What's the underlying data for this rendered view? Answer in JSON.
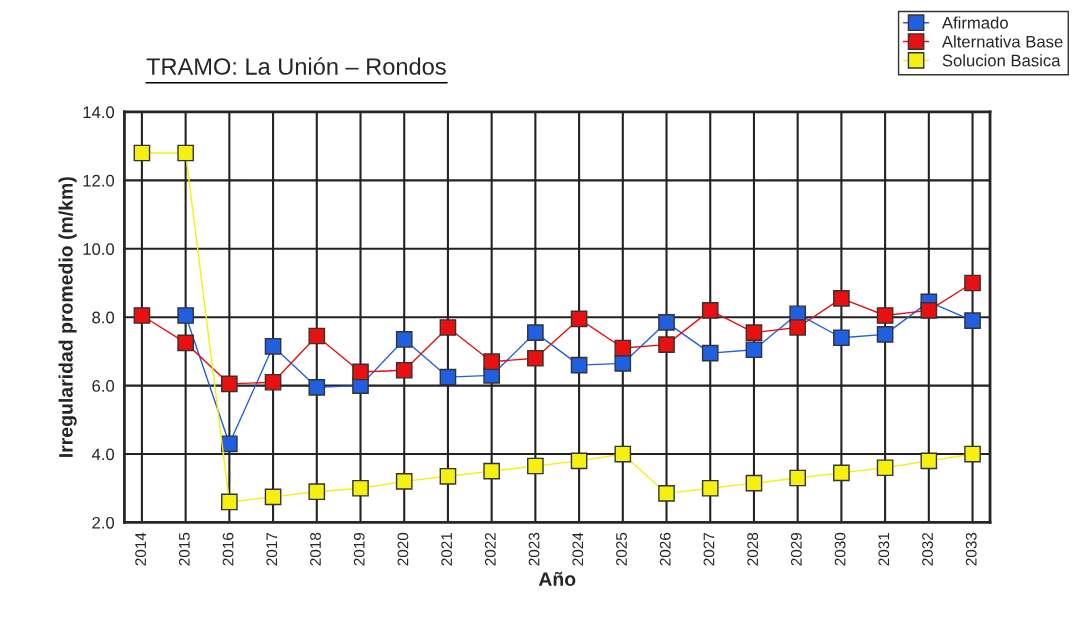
{
  "chart_data": {
    "type": "line",
    "title": "TRAMO: La Unión – Rondos",
    "xlabel": "Año",
    "ylabel": "Irregularidad promedio (m/km)",
    "categories": [
      "2014",
      "2015",
      "2016",
      "2017",
      "2018",
      "2019",
      "2020",
      "2021",
      "2022",
      "2023",
      "2024",
      "2025",
      "2026",
      "2027",
      "2028",
      "2029",
      "2030",
      "2031",
      "2032",
      "2033"
    ],
    "series": [
      {
        "name": "Afirmado",
        "color": "#1f5fe0",
        "values": [
          null,
          8.05,
          4.3,
          7.15,
          5.95,
          6.0,
          7.35,
          6.25,
          6.3,
          7.55,
          6.6,
          6.65,
          7.85,
          6.95,
          7.05,
          8.1,
          7.4,
          7.5,
          8.45,
          7.9
        ]
      },
      {
        "name": "Alternativa Base",
        "color": "#e81010",
        "values": [
          8.05,
          7.25,
          6.05,
          6.1,
          7.45,
          6.4,
          6.45,
          7.7,
          6.7,
          6.8,
          7.95,
          7.1,
          7.2,
          8.2,
          7.55,
          7.7,
          8.55,
          8.05,
          8.2,
          9.0
        ]
      },
      {
        "name": "Solucion Basica",
        "color": "#f5f010",
        "values": [
          12.8,
          12.8,
          2.6,
          2.75,
          2.9,
          3.0,
          3.2,
          3.35,
          3.5,
          3.65,
          3.8,
          4.0,
          2.85,
          3.0,
          3.15,
          3.3,
          3.45,
          3.6,
          3.8,
          4.0
        ]
      }
    ],
    "ylim": [
      2,
      14
    ],
    "yticks": [
      {
        "value": 2,
        "label": "2.0"
      },
      {
        "value": 4,
        "label": "4.0"
      },
      {
        "value": 6,
        "label": "6.0"
      },
      {
        "value": 8,
        "label": "8.0"
      },
      {
        "value": 10,
        "label": "10.0"
      },
      {
        "value": 12,
        "label": "12.0"
      },
      {
        "value": 14,
        "label": "14.0"
      }
    ],
    "grid": true,
    "legend": "top right",
    "marker": "square",
    "line_style": "solid"
  }
}
